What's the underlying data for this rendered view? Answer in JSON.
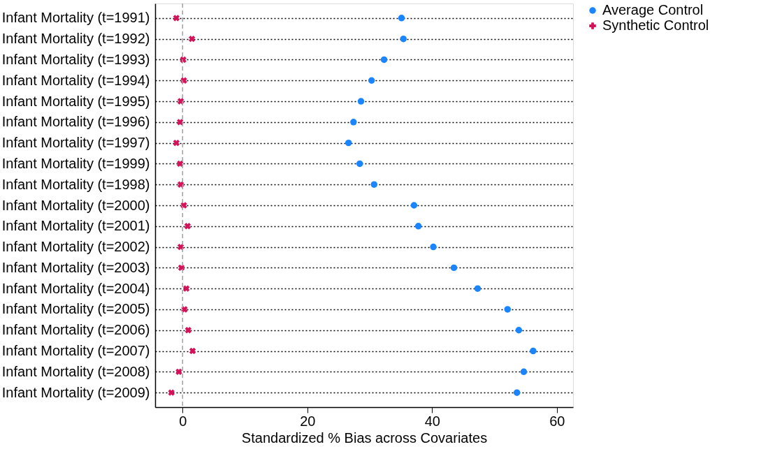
{
  "chart_data": {
    "type": "scatter",
    "xlabel": "Standardized % Bias across Covariates",
    "categories": [
      "Infant Mortality (t=1991)",
      "Infant Mortality (t=1992)",
      "Infant Mortality (t=1993)",
      "Infant Mortality (t=1994)",
      "Infant Mortality (t=1995)",
      "Infant Mortality (t=1996)",
      "Infant Mortality (t=1997)",
      "Infant Mortality (t=1999)",
      "Infant Mortality (t=1998)",
      "Infant Mortality (t=2000)",
      "Infant Mortality (t=2001)",
      "Infant Mortality (t=2002)",
      "Infant Mortality (t=2003)",
      "Infant Mortality (t=2004)",
      "Infant Mortality (t=2005)",
      "Infant Mortality (t=2006)",
      "Infant Mortality (t=2007)",
      "Infant Mortality (t=2008)",
      "Infant Mortality (t=2009)"
    ],
    "orientation": "horizontal",
    "series": [
      {
        "name": "Average Control",
        "color": "#1a85ff",
        "marker": "circle",
        "values": [
          35.1,
          35.4,
          32.3,
          30.3,
          28.6,
          27.4,
          26.6,
          28.4,
          30.7,
          37.1,
          37.8,
          40.2,
          43.5,
          47.3,
          52.1,
          53.9,
          56.2,
          54.7,
          53.6
        ]
      },
      {
        "name": "Synthetic Control",
        "color": "#d41159",
        "marker": "cross",
        "values": [
          -1.0,
          1.5,
          0.1,
          0.2,
          -0.3,
          -0.4,
          -1.0,
          -0.4,
          -0.3,
          0.2,
          0.8,
          -0.3,
          -0.2,
          0.6,
          0.3,
          0.9,
          1.6,
          -0.6,
          -1.8
        ]
      }
    ],
    "xlim": [
      -4.4,
      62.6
    ],
    "xticks": [
      0,
      20,
      40,
      60
    ],
    "grid": "y",
    "legend": "right",
    "ref_lines": [
      {
        "axis": "x",
        "value": 0,
        "color": "#a0a0a0",
        "line_style": "dashed"
      }
    ]
  }
}
